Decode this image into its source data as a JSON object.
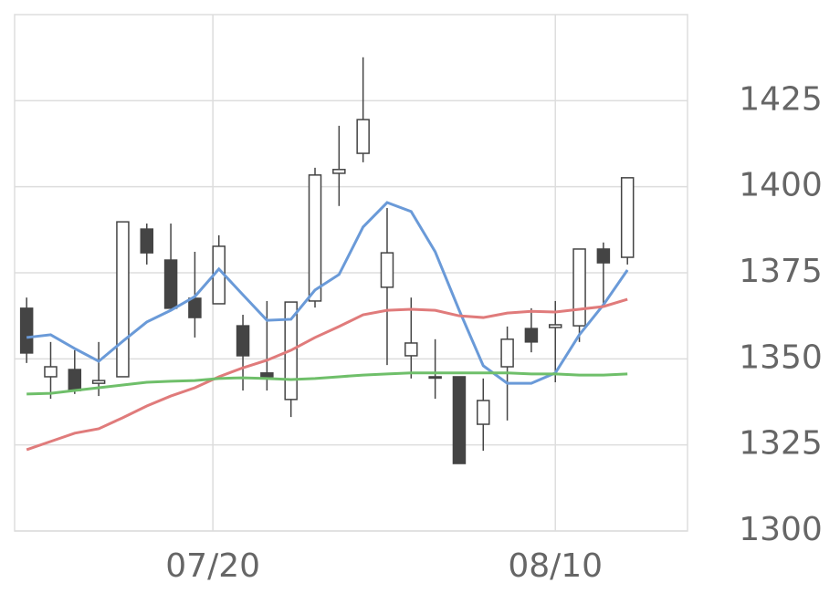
{
  "chart_data": {
    "type": "candlestick",
    "x": [
      0,
      1,
      2,
      3,
      4,
      5,
      6,
      7,
      8,
      9,
      10,
      11,
      12,
      13,
      14,
      15,
      16,
      17,
      18,
      19,
      20,
      21,
      22,
      23,
      24,
      25
    ],
    "open": [
      1364.7,
      1344.8,
      1346.9,
      1342.9,
      1344.8,
      1387.7,
      1378.7,
      1367.6,
      1366.0,
      1359.6,
      1345.9,
      1338.2,
      1366.8,
      1403.9,
      1409.7,
      1370.8,
      1350.9,
      1344.8,
      1344.8,
      1331.0,
      1347.7,
      1358.8,
      1359.1,
      1359.6,
      1381.9,
      1379.5
    ],
    "high": [
      1367.8,
      1354.9,
      1352.5,
      1354.9,
      1389.8,
      1389.3,
      1389.3,
      1381.1,
      1385.9,
      1362.8,
      1366.8,
      1366.5,
      1405.5,
      1417.7,
      1437.6,
      1393.8,
      1367.8,
      1355.7,
      1344.8,
      1344.3,
      1359.4,
      1364.7,
      1366.8,
      1381.9,
      1383.8,
      1402.6
    ],
    "low": [
      1348.8,
      1338.4,
      1339.8,
      1339.2,
      1344.8,
      1377.4,
      1364.7,
      1356.2,
      1366.0,
      1340.8,
      1340.8,
      1333.1,
      1364.9,
      1394.4,
      1407.1,
      1348.2,
      1344.3,
      1338.4,
      1319.6,
      1323.3,
      1332.1,
      1351.9,
      1343.2,
      1354.9,
      1366.0,
      1377.4
    ],
    "close": [
      1351.7,
      1347.7,
      1340.8,
      1343.7,
      1389.8,
      1380.8,
      1364.7,
      1362.0,
      1382.7,
      1350.9,
      1344.8,
      1366.5,
      1403.4,
      1405.0,
      1419.5,
      1380.8,
      1354.6,
      1344.8,
      1319.6,
      1337.9,
      1355.7,
      1354.9,
      1359.9,
      1381.9,
      1377.9,
      1402.6
    ],
    "up_color": "#ffffff",
    "down_color": "#444444",
    "candle_stroke": "#444444",
    "lines": [
      {
        "color": "#6a9ad8",
        "values": [
          1356.2,
          1357.0,
          1353.0,
          1349.3,
          1355.1,
          1360.7,
          1364.1,
          1368.1,
          1376.1,
          1368.6,
          1361.2,
          1361.5,
          1370.0,
          1374.5,
          1388.3,
          1395.4,
          1392.8,
          1381.1,
          1364.1,
          1348.0,
          1342.9,
          1342.9,
          1345.9,
          1357.0,
          1365.7,
          1375.8
        ]
      },
      {
        "color": "#e07b7b",
        "values": [
          1323.6,
          1326.0,
          1328.4,
          1329.7,
          1332.9,
          1336.3,
          1339.2,
          1341.6,
          1344.8,
          1347.4,
          1349.6,
          1352.5,
          1356.2,
          1359.4,
          1362.8,
          1364.1,
          1364.4,
          1364.1,
          1362.5,
          1362.0,
          1363.3,
          1363.8,
          1363.6,
          1364.4,
          1365.2,
          1367.3
        ]
      },
      {
        "color": "#6fbf6a",
        "values": [
          1339.8,
          1340.0,
          1340.8,
          1341.6,
          1342.4,
          1343.2,
          1343.5,
          1343.7,
          1344.3,
          1344.5,
          1344.3,
          1344.0,
          1344.3,
          1344.8,
          1345.3,
          1345.6,
          1345.9,
          1345.9,
          1345.9,
          1345.9,
          1345.9,
          1345.6,
          1345.6,
          1345.3,
          1345.3,
          1345.6
        ]
      }
    ],
    "xlim": [
      -0.5,
      27.5
    ],
    "xticks": [
      {
        "value": 7.75,
        "label": "07/20"
      },
      {
        "value": 22,
        "label": "08/10"
      }
    ],
    "ylim": [
      1300,
      1450
    ],
    "yticks": [
      1300,
      1325,
      1350,
      1375,
      1400,
      1425
    ],
    "grid": true
  }
}
